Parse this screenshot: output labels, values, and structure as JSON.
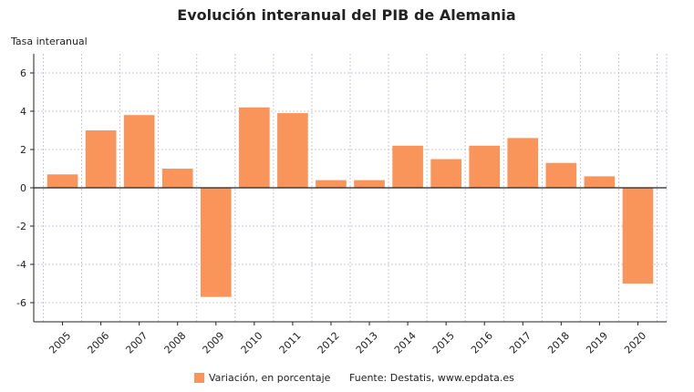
{
  "chart_data": {
    "type": "bar",
    "title": "Evolución interanual del PIB de Alemania",
    "ylabel": "Tasa interanual",
    "xlabel": "",
    "categories": [
      "2005",
      "2006",
      "2007",
      "2008",
      "2009",
      "2010",
      "2011",
      "2012",
      "2013",
      "2014",
      "2015",
      "2016",
      "2017",
      "2018",
      "2019",
      "2020"
    ],
    "series": [
      {
        "name": "Variación, en porcentaje",
        "values": [
          0.7,
          3.0,
          3.8,
          1.0,
          -5.7,
          4.2,
          3.9,
          0.4,
          0.4,
          2.2,
          1.5,
          2.2,
          2.6,
          1.3,
          0.6,
          -5.0
        ],
        "color": "#f9955a"
      }
    ],
    "ylim": [
      -7,
      7
    ],
    "yticks": [
      "6",
      "4",
      "2",
      "0",
      "-2",
      "-4",
      "-6"
    ],
    "grid": true,
    "legend_position": "bottom",
    "source": "Fuente: Destatis, www.epdata.es",
    "colors": {
      "bar": "#f9955a",
      "grid": "#c8c8dc",
      "axis": "#222222",
      "text": "#222222"
    }
  }
}
